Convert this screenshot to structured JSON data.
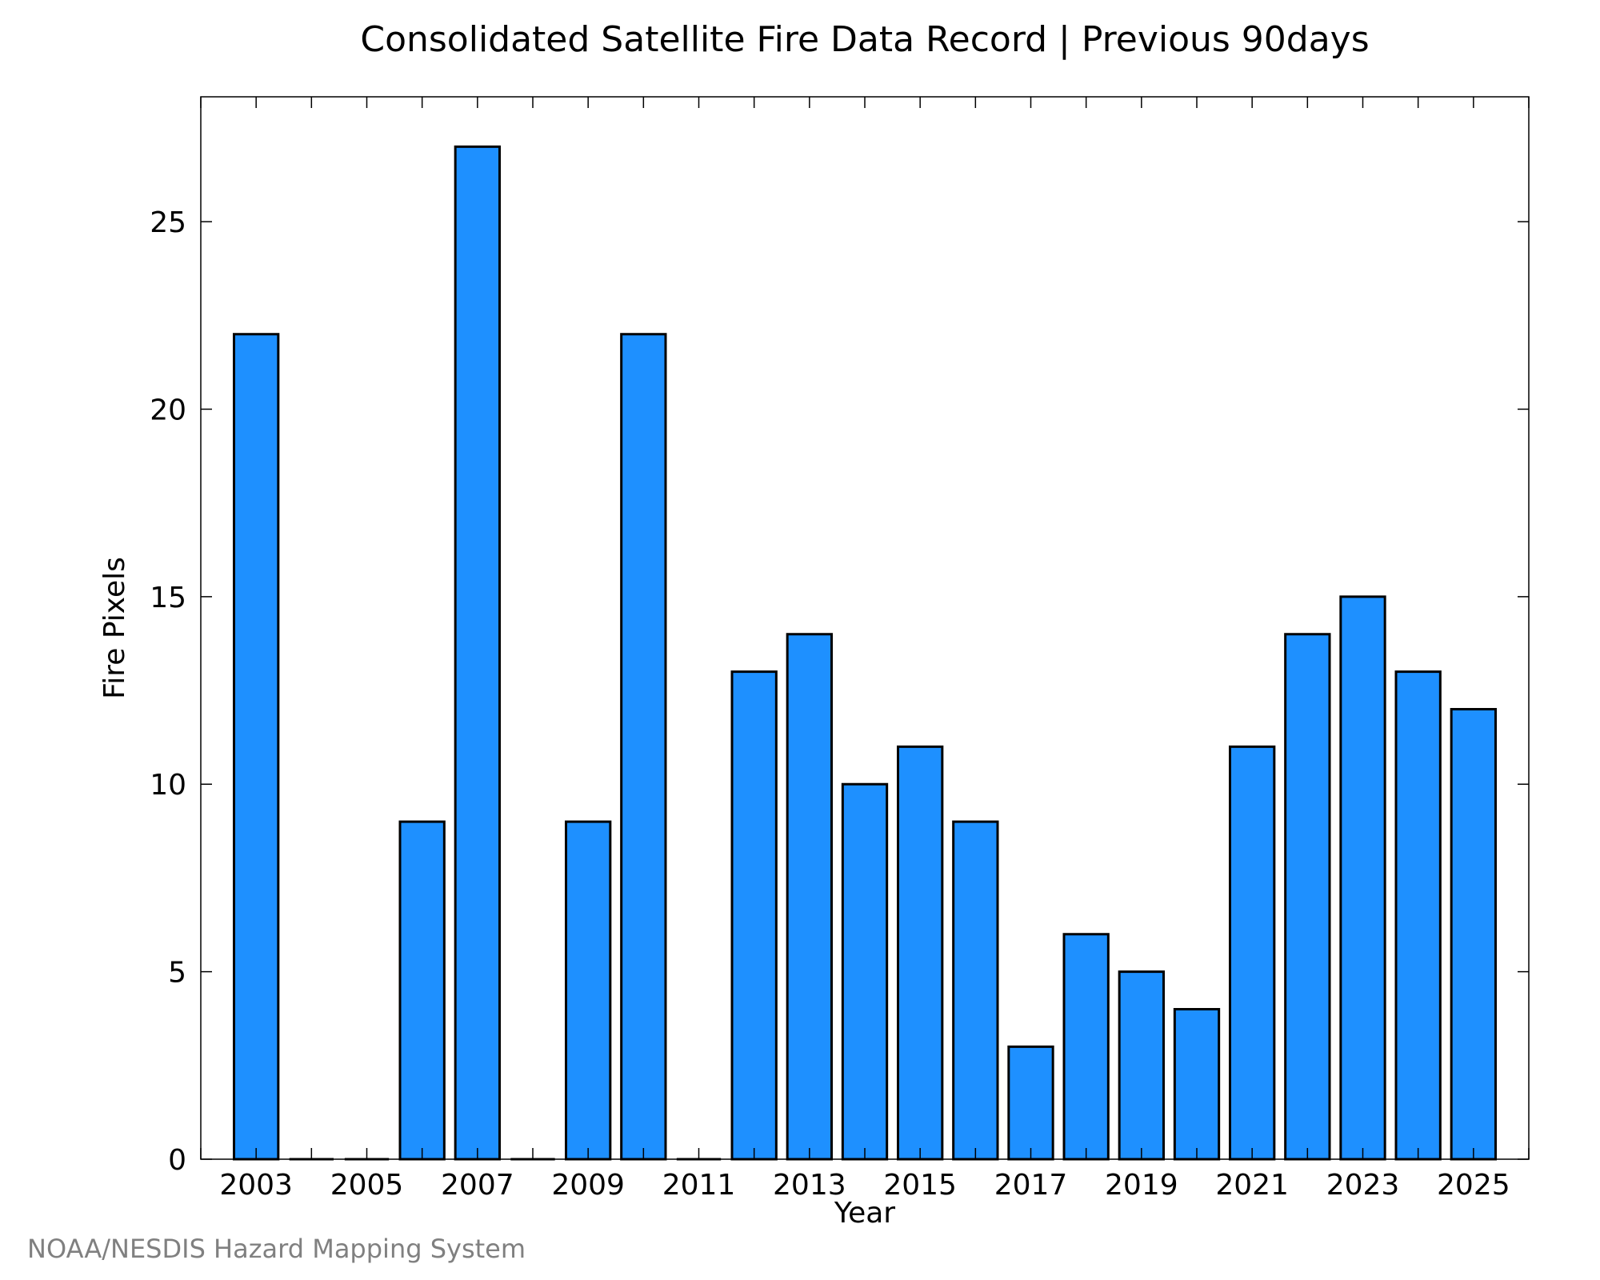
{
  "credit": "NOAA/NESDIS Hazard Mapping System",
  "chart_data": {
    "type": "bar",
    "title": "Consolidated Satellite Fire Data Record | Previous 90days",
    "xlabel": "Year",
    "ylabel": "Fire Pixels",
    "categories": [
      2003,
      2004,
      2005,
      2006,
      2007,
      2008,
      2009,
      2010,
      2011,
      2012,
      2013,
      2014,
      2015,
      2016,
      2017,
      2018,
      2019,
      2020,
      2021,
      2022,
      2023,
      2024,
      2025
    ],
    "values": [
      22,
      0,
      0,
      9,
      27,
      0,
      9,
      22,
      0,
      13,
      14,
      10,
      11,
      9,
      3,
      6,
      5,
      4,
      11,
      14,
      15,
      13,
      12
    ],
    "xlim": [
      2002,
      2026
    ],
    "ylim": [
      0,
      28.33
    ],
    "xticks": [
      2003,
      2005,
      2007,
      2009,
      2011,
      2013,
      2015,
      2017,
      2019,
      2021,
      2023,
      2025
    ],
    "yticks": [
      0,
      5,
      10,
      15,
      20,
      25
    ],
    "bar_color": "#1E90FF",
    "bar_edge_color": "#000000",
    "grid": false
  }
}
